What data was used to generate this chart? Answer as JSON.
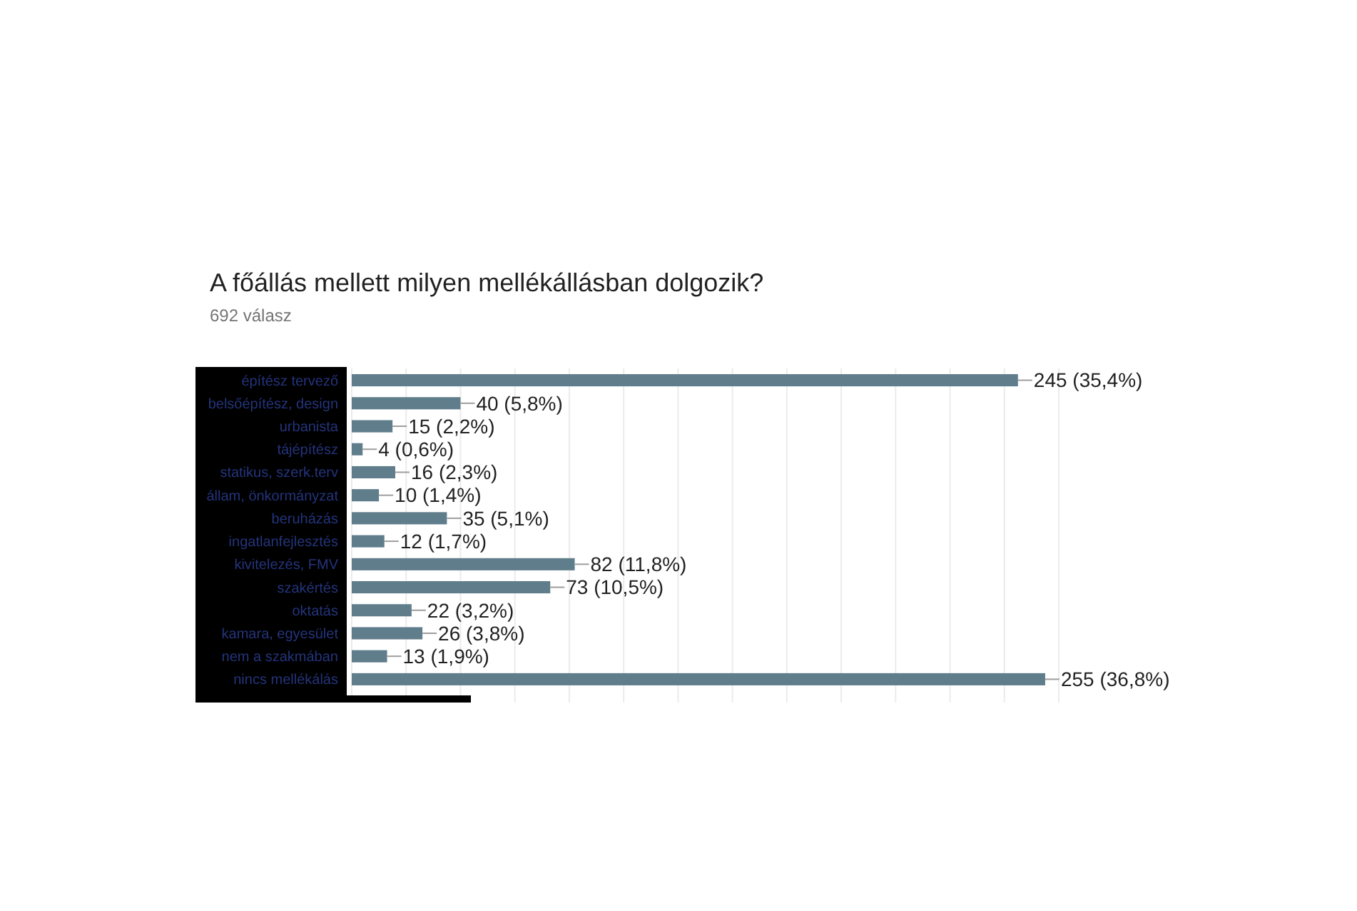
{
  "chart_data": {
    "type": "bar",
    "orientation": "horizontal",
    "title": "A főállás mellett milyen mellékállásban dolgozik?",
    "subtitle": "692 válasz",
    "categories": [
      "építész tervező",
      "belsőépítész, design",
      "urbanista",
      "tájépítész",
      "statikus,  szerk.terv",
      "állam, önkormányzat",
      "beruházás",
      "ingatlanfejlesztés",
      "kivitelezés, FMV",
      "szakértés",
      "oktatás",
      "kamara, egyesület",
      "nem a szakmában",
      "nincs mellékálás"
    ],
    "values": [
      245,
      40,
      15,
      4,
      16,
      10,
      35,
      12,
      82,
      73,
      22,
      26,
      13,
      255
    ],
    "value_labels": [
      "245 (35,4%)",
      "40 (5,8%)",
      "15 (2,2%)",
      "4 (0,6%)",
      "16 (2,3%)",
      "10 (1,4%)",
      "35 (5,1%)",
      "12 (1,7%)",
      "82 (11,8%)",
      "73 (10,5%)",
      "22 (3,2%)",
      "26 (3,8%)",
      "13 (1,9%)",
      "255 (36,8%)"
    ],
    "color": "#607d8b",
    "xlim": [
      0,
      260
    ],
    "xticks": [
      {
        "value": 0,
        "label": null
      },
      {
        "value": 20,
        "label": null
      },
      {
        "value": 40,
        "label": null
      },
      {
        "value": 60,
        "label": null
      },
      {
        "value": 80,
        "label": null
      },
      {
        "value": 100,
        "label": null
      },
      {
        "value": 120,
        "label": null
      },
      {
        "value": 140,
        "label": null
      },
      {
        "value": 160,
        "label": null
      },
      {
        "value": 180,
        "label": null
      },
      {
        "value": 200,
        "label": null
      },
      {
        "value": 220,
        "label": null
      },
      {
        "value": 240,
        "label": null
      },
      {
        "value": 260,
        "label": null
      }
    ],
    "grid": "x",
    "tick_labels": "y"
  }
}
